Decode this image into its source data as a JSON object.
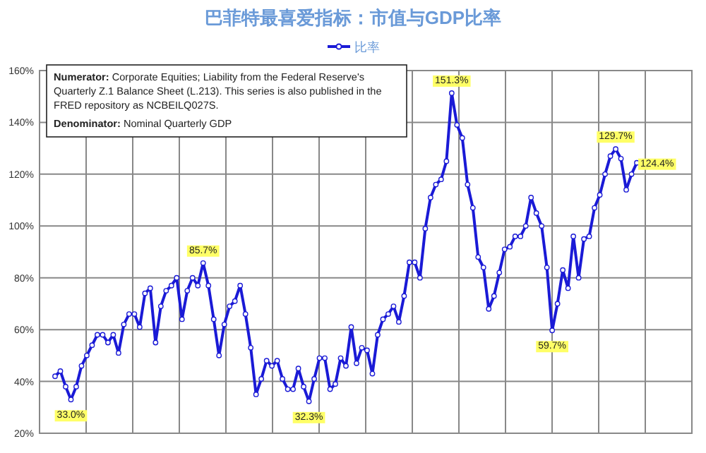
{
  "chart_data": {
    "type": "line",
    "title": "巴菲特最喜爱指标：市值与GDP比率",
    "categories": [
      null,
      null,
      null,
      null,
      null,
      null,
      null,
      null,
      null,
      null,
      null,
      null,
      null,
      null,
      null,
      null,
      null,
      null,
      null,
      null,
      null,
      null,
      null,
      null,
      null,
      null,
      null,
      null,
      null,
      null,
      null,
      null,
      null,
      null,
      null,
      null,
      null,
      null,
      null,
      null,
      null,
      null,
      null,
      null,
      null,
      null,
      null,
      null,
      null,
      null,
      null,
      null,
      null,
      null,
      null,
      null,
      null,
      null,
      null,
      null,
      null,
      null,
      null,
      null,
      null,
      null,
      null,
      null,
      null,
      null,
      null,
      null,
      null,
      null,
      null,
      null,
      null,
      null,
      null,
      null,
      null,
      null,
      null,
      null,
      null,
      null,
      null,
      null,
      null,
      null,
      null,
      null,
      null,
      null,
      null,
      null,
      null,
      null,
      null,
      null,
      null,
      null,
      null,
      null,
      null,
      null,
      null,
      null,
      null,
      null,
      null
    ],
    "series": [
      {
        "name": "比率",
        "color": "#1a1ad6",
        "values": [
          42,
          44,
          38,
          33.0,
          38,
          46,
          50,
          54,
          58,
          58,
          55,
          58,
          51,
          62,
          66,
          66,
          61,
          74,
          76,
          55,
          69,
          75,
          77,
          80,
          64,
          75,
          80,
          77,
          85.7,
          77,
          64,
          50,
          62,
          69,
          71,
          77,
          66,
          53,
          35,
          41,
          48,
          46,
          48,
          41,
          37,
          37,
          45,
          38,
          32.3,
          41,
          49,
          49,
          37,
          39,
          49,
          46,
          61,
          47,
          53,
          52,
          43,
          58,
          64,
          66,
          69,
          63,
          73,
          86,
          86,
          80,
          99,
          111,
          116,
          118,
          125,
          151.3,
          139,
          134,
          116,
          107,
          88,
          84,
          68,
          73,
          82,
          91,
          92,
          96,
          96,
          100,
          111,
          105,
          100,
          84,
          59.7,
          70,
          83,
          76,
          96,
          80,
          95,
          96,
          107,
          112,
          120,
          127,
          129.7,
          126,
          114,
          120,
          124.4
        ],
        "value_labels": [
          null,
          null,
          null,
          "33.0%",
          null,
          null,
          null,
          null,
          null,
          null,
          null,
          null,
          null,
          null,
          null,
          null,
          null,
          null,
          null,
          null,
          null,
          null,
          null,
          null,
          null,
          null,
          null,
          null,
          "85.7%",
          null,
          null,
          null,
          null,
          null,
          null,
          null,
          null,
          null,
          null,
          null,
          null,
          null,
          null,
          null,
          null,
          null,
          null,
          null,
          "32.3%",
          null,
          null,
          null,
          null,
          null,
          null,
          null,
          null,
          null,
          null,
          null,
          null,
          null,
          null,
          null,
          null,
          null,
          null,
          null,
          null,
          null,
          null,
          null,
          null,
          null,
          null,
          "151.3%",
          null,
          null,
          null,
          null,
          null,
          null,
          null,
          null,
          null,
          null,
          null,
          null,
          null,
          null,
          null,
          null,
          null,
          null,
          "59.7%",
          null,
          null,
          null,
          null,
          null,
          null,
          null,
          null,
          null,
          null,
          null,
          "129.7%",
          null,
          null,
          null,
          "124.4%"
        ]
      }
    ],
    "ylim": [
      20,
      160
    ],
    "yticks": [
      {
        "value": 20,
        "label": "20%"
      },
      {
        "value": 40,
        "label": "40%"
      },
      {
        "value": 60,
        "label": "60%"
      },
      {
        "value": 80,
        "label": "80%"
      },
      {
        "value": 100,
        "label": "100%"
      },
      {
        "value": 120,
        "label": "120%"
      },
      {
        "value": 140,
        "label": "140%"
      },
      {
        "value": 160,
        "label": "160%"
      }
    ],
    "grid": true,
    "legend": "top",
    "marker": "circle",
    "line_style": "solid",
    "annotations": [
      "Numerator: Corporate Equities; Liability from the Federal Reserve's Quarterly Z.1 Balance Sheet (L.213). This series is also published in the FRED repository as NCBEILQ027S.",
      "Denominator: Nominal Quarterly GDP"
    ]
  }
}
